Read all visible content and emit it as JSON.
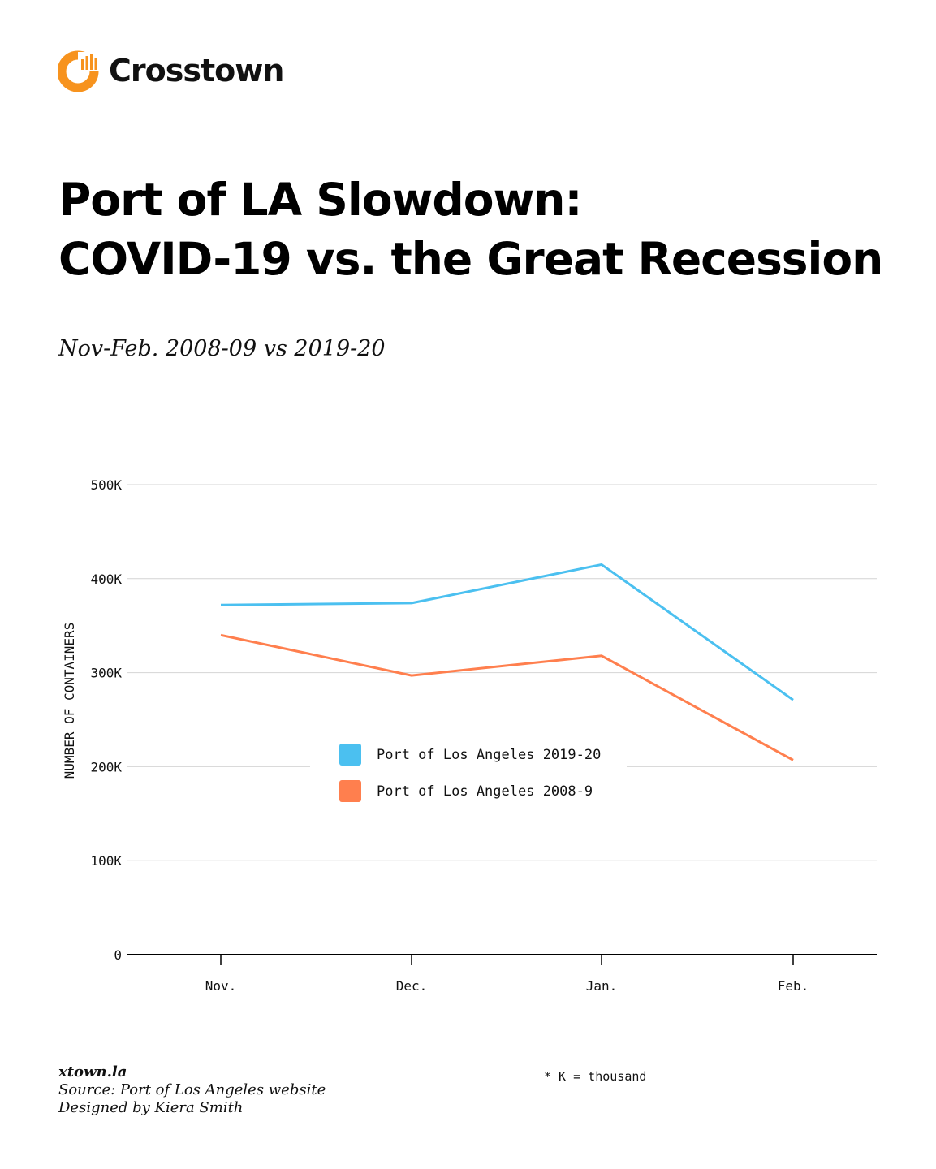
{
  "brand": {
    "name": "Crosstown",
    "color": "#F7931E"
  },
  "title_lines": [
    "Port of LA Slowdown:",
    "COVID-19 vs. the Great Recession"
  ],
  "subtitle": "Nov-Feb. 2008-09 vs 2019-20",
  "chart_data": {
    "type": "line",
    "title": "Port of LA Slowdown: COVID-19 vs. the Great Recession",
    "subtitle": "Nov-Feb. 2008-09 vs 2019-20",
    "xlabel": "",
    "ylabel": "NUMBER OF CONTAINERS",
    "categories": [
      "Nov.",
      "Dec.",
      "Jan.",
      "Feb."
    ],
    "ylim": [
      0,
      500000
    ],
    "yticks": [
      0,
      100000,
      200000,
      300000,
      400000,
      500000
    ],
    "ytick_labels": [
      "0",
      "100K",
      "200K",
      "300K",
      "400K",
      "500K"
    ],
    "grid": true,
    "legend_position": "center",
    "series": [
      {
        "name": "Port of Los Angeles 2019-20",
        "color": "#4BC0F0",
        "values": [
          372000,
          374000,
          415000,
          271000
        ]
      },
      {
        "name": "Port of Los Angeles 2008-9",
        "color": "#FF7F4E",
        "values": [
          340000,
          297000,
          318000,
          207000
        ]
      }
    ]
  },
  "footer": {
    "site": "xtown.la",
    "source": "Source: Port of Los Angeles website",
    "credit": "Designed by Kiera Smith"
  },
  "note": "* K = thousand"
}
